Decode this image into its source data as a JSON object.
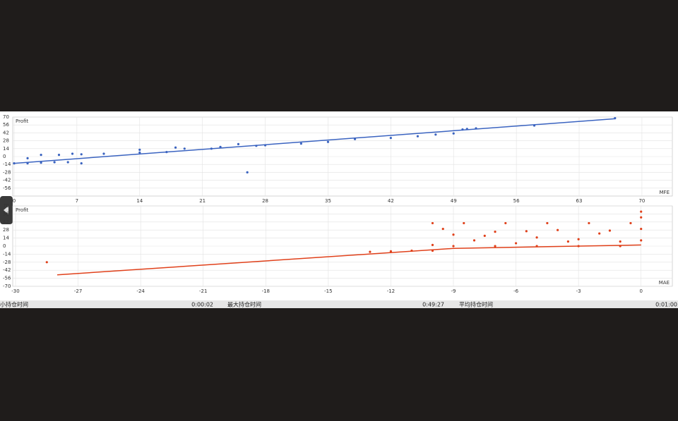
{
  "chart_data": [
    {
      "type": "scatter",
      "y_label": "Profit",
      "x_label": "MFE",
      "xlim": [
        0,
        73
      ],
      "ylim": [
        -70,
        70
      ],
      "xticks": [
        0,
        7,
        14,
        21,
        28,
        35,
        42,
        49,
        56,
        63,
        70
      ],
      "yticks": [
        -56,
        -42,
        -28,
        -14,
        0,
        14,
        28,
        42,
        56,
        70
      ],
      "grid": true,
      "series": [
        {
          "color": "#3a63c0",
          "x": [
            0,
            1.5,
            3,
            4.5,
            6,
            7.5,
            1.5,
            3,
            5,
            6.5,
            7.5,
            10,
            14,
            14,
            17,
            18,
            19,
            22,
            23,
            25,
            27,
            28,
            32,
            35,
            38,
            42,
            45,
            47,
            49,
            50,
            50.5,
            51.5,
            58,
            67,
            26
          ],
          "values": [
            -12,
            -12,
            -11,
            -10,
            -10,
            -12,
            -3,
            3,
            3,
            5,
            4,
            5,
            7,
            12,
            8,
            16,
            14,
            14,
            17,
            22,
            19,
            20,
            23,
            26,
            31,
            33,
            36,
            39,
            41,
            48,
            49,
            50,
            55,
            68,
            -28
          ]
        }
      ],
      "trend": {
        "color": "#3a63c0",
        "x": [
          0,
          67
        ],
        "values": [
          -12,
          67
        ]
      }
    },
    {
      "type": "scatter",
      "y_label": "Profit",
      "x_label": "MAE",
      "xlim": [
        -30,
        1.5
      ],
      "ylim": [
        -70,
        70
      ],
      "xticks": [
        -30,
        -27,
        -24,
        -21,
        -18,
        -15,
        -12,
        -9,
        -6,
        -3,
        0
      ],
      "yticks": [
        -70,
        -56,
        -42,
        -28,
        -14,
        0,
        14,
        28,
        42,
        56,
        70
      ],
      "grid": true,
      "series": [
        {
          "color": "#e0401a",
          "x": [
            -28.5,
            -13,
            -12,
            -11,
            -10,
            -10,
            -10,
            -9,
            -8,
            -7,
            -6,
            -5,
            -4,
            -3,
            -2,
            -1,
            0,
            -9.5,
            -8.5,
            -7.5,
            -6.5,
            -5.5,
            -4.5,
            -3.5,
            -2.5,
            -1.5,
            -0.5,
            -9,
            -7,
            -5,
            -3,
            -1,
            0,
            0,
            0
          ],
          "values": [
            -28,
            -10,
            -9,
            -8,
            -8,
            2,
            40,
            20,
            10,
            25,
            5,
            15,
            28,
            12,
            22,
            8,
            30,
            30,
            40,
            18,
            40,
            26,
            40,
            8,
            40,
            27,
            40,
            0,
            0,
            0,
            0,
            0,
            60,
            50,
            10
          ]
        }
      ],
      "trend": {
        "color": "#e0401a",
        "x": [
          -28,
          -9,
          0
        ],
        "values": [
          -50,
          -4,
          2
        ]
      }
    }
  ],
  "status_bar": [
    "小持仓时间",
    "0:00:02",
    "最大持仓时间",
    "0:49:27",
    "平均持仓时间",
    "0:01:00"
  ]
}
